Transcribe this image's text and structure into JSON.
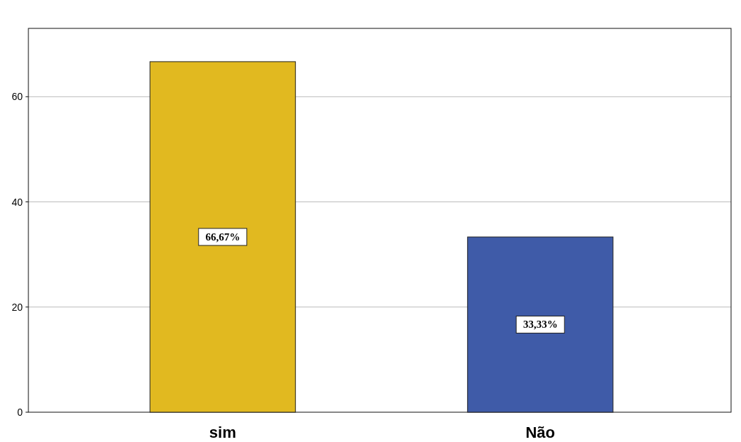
{
  "chart_data": {
    "type": "bar",
    "categories": [
      "sim",
      "Não"
    ],
    "values": [
      66.67,
      33.33
    ],
    "colors": [
      "#e1b920",
      "#3f5ba8"
    ],
    "value_labels": [
      "66,67%",
      "33,33%"
    ],
    "ylim": [
      0,
      73
    ],
    "yticks": [
      0,
      20,
      40,
      60
    ],
    "grid": "y"
  }
}
